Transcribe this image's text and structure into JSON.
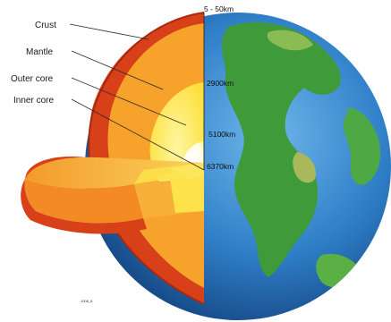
{
  "labels": {
    "crust": "Crust",
    "mantle": "Mantle",
    "outer_core": "Outer core",
    "inner_core": "Inner core"
  },
  "depths": {
    "crust": "5 - 50km",
    "mantle": "2900km",
    "outer_core": "5100km",
    "inner_core": "6370km"
  },
  "image_code": "1008_8",
  "colors": {
    "ocean": "#2f7fc8",
    "land": "#3f9a3a",
    "crust": "#d8401a",
    "mantle": "#f7a22a",
    "outer_core": "#fde24a",
    "inner_core": "#ffffff"
  }
}
